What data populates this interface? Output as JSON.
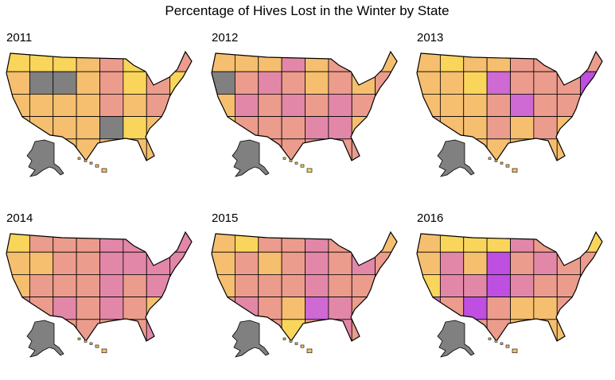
{
  "title": "Percentage of Hives Lost in the Winter by State",
  "panels": [
    {
      "year": "2011",
      "alaska": "#808080",
      "hawaii": "#f5bf6f",
      "cells": [
        [
          "#f9d55b",
          "#f9d55b",
          "#f9d55b",
          "#f5bf6f",
          "#ec9c8c",
          "#f9d55b",
          "#f5bf6f",
          "#ec9c8c"
        ],
        [
          "#f5bf6f",
          "#808080",
          "#808080",
          "#f5bf6f",
          "#ec9c8c",
          "#f9d55b",
          "#ec9c8c",
          "#f9d55b"
        ],
        [
          "#f5bf6f",
          "#f5bf6f",
          "#f5bf6f",
          "#f5bf6f",
          "#ec9c8c",
          "#f5bf6f",
          "#ec9c8c",
          "#f5bf6f"
        ],
        [
          "#f5bf6f",
          "#f5bf6f",
          "#f5bf6f",
          "#f5bf6f",
          "#808080",
          "#f9d55b",
          "#f5bf6f",
          "#f5bf6f"
        ],
        [
          "#f5bf6f",
          "#f5bf6f",
          "#f5bf6f",
          "#f5bf6f",
          "#f5bf6f",
          "#f5bf6f",
          "#f5bf6f",
          "#f5bf6f"
        ]
      ]
    },
    {
      "year": "2012",
      "alaska": "#808080",
      "hawaii": "#f9d55b",
      "cells": [
        [
          "#f5bf6f",
          "#f5bf6f",
          "#f5bf6f",
          "#e387a8",
          "#f5bf6f",
          "#ec9c8c",
          "#ec9c8c",
          "#f5bf6f"
        ],
        [
          "#808080",
          "#ec9c8c",
          "#e387a8",
          "#ec9c8c",
          "#f5bf6f",
          "#ec9c8c",
          "#f5bf6f",
          "#ec9c8c"
        ],
        [
          "#f5bf6f",
          "#e387a8",
          "#ec9c8c",
          "#e387a8",
          "#ec9c8c",
          "#e387a8",
          "#ec9c8c",
          "#f5bf6f"
        ],
        [
          "#f9d55b",
          "#ec9c8c",
          "#ec9c8c",
          "#ec9c8c",
          "#e387a8",
          "#e387a8",
          "#f5bf6f",
          "#ec9c8c"
        ],
        [
          "#f5bf6f",
          "#f5bf6f",
          "#ec9c8c",
          "#ec9c8c",
          "#ec9c8c",
          "#ec9c8c",
          "#ec9c8c",
          "#ec9c8c"
        ]
      ]
    },
    {
      "year": "2013",
      "alaska": "#808080",
      "hawaii": "#f5bf6f",
      "cells": [
        [
          "#f5bf6f",
          "#f9d55b",
          "#f5bf6f",
          "#f5bf6f",
          "#ec9c8c",
          "#ec9c8c",
          "#ec9c8c",
          "#ec9c8c"
        ],
        [
          "#f5bf6f",
          "#f5bf6f",
          "#f9d55b",
          "#cf69d3",
          "#ec9c8c",
          "#ec9c8c",
          "#ec9c8c",
          "#bf4fe0"
        ],
        [
          "#f5bf6f",
          "#f5bf6f",
          "#f5bf6f",
          "#ec9c8c",
          "#cf69d3",
          "#ec9c8c",
          "#ec9c8c",
          "#ec9c8c"
        ],
        [
          "#ec9c8c",
          "#f5bf6f",
          "#f5bf6f",
          "#ec9c8c",
          "#f5bf6f",
          "#ec9c8c",
          "#f5bf6f",
          "#f5bf6f"
        ],
        [
          "#f5bf6f",
          "#f5bf6f",
          "#f5bf6f",
          "#f5bf6f",
          "#f5bf6f",
          "#f5bf6f",
          "#f5bf6f",
          "#f5bf6f"
        ]
      ]
    },
    {
      "year": "2014",
      "alaska": "#808080",
      "hawaii": "#f5bf6f",
      "cells": [
        [
          "#f9d55b",
          "#ec9c8c",
          "#ec9c8c",
          "#ec9c8c",
          "#e387a8",
          "#e387a8",
          "#ec9c8c",
          "#e387a8"
        ],
        [
          "#f5bf6f",
          "#f5bf6f",
          "#ec9c8c",
          "#ec9c8c",
          "#e387a8",
          "#e387a8",
          "#e387a8",
          "#e387a8"
        ],
        [
          "#f5bf6f",
          "#ec9c8c",
          "#ec9c8c",
          "#ec9c8c",
          "#e387a8",
          "#ec9c8c",
          "#e387a8",
          "#ec9c8c"
        ],
        [
          "#e387a8",
          "#ec9c8c",
          "#e387a8",
          "#ec9c8c",
          "#e387a8",
          "#ec9c8c",
          "#f5bf6f",
          "#ec9c8c"
        ],
        [
          "#f5bf6f",
          "#ec9c8c",
          "#ec9c8c",
          "#ec9c8c",
          "#ec9c8c",
          "#ec9c8c",
          "#e387a8",
          "#ec9c8c"
        ]
      ]
    },
    {
      "year": "2015",
      "alaska": "#808080",
      "hawaii": "#f5bf6f",
      "cells": [
        [
          "#f5bf6f",
          "#f9d55b",
          "#ec9c8c",
          "#ec9c8c",
          "#e387a8",
          "#ec9c8c",
          "#ec9c8c",
          "#f5bf6f"
        ],
        [
          "#f5bf6f",
          "#ec9c8c",
          "#f5bf6f",
          "#ec9c8c",
          "#e387a8",
          "#ec9c8c",
          "#e387a8",
          "#ec9c8c"
        ],
        [
          "#f5bf6f",
          "#ec9c8c",
          "#ec9c8c",
          "#ec9c8c",
          "#e387a8",
          "#ec9c8c",
          "#ec9c8c",
          "#ec9c8c"
        ],
        [
          "#ec9c8c",
          "#e387a8",
          "#ec9c8c",
          "#f5bf6f",
          "#cf69d3",
          "#e387a8",
          "#ec9c8c",
          "#ec9c8c"
        ],
        [
          "#ec9c8c",
          "#ec9c8c",
          "#ec9c8c",
          "#f9d55b",
          "#ec9c8c",
          "#e387a8",
          "#ec9c8c",
          "#ec9c8c"
        ]
      ]
    },
    {
      "year": "2016",
      "alaska": "#808080",
      "hawaii": "#f5bf6f",
      "cells": [
        [
          "#f5bf6f",
          "#f9d55b",
          "#f9d55b",
          "#f9d55b",
          "#e387a8",
          "#ec9c8c",
          "#ec9c8c",
          "#f9d55b"
        ],
        [
          "#f5bf6f",
          "#e387a8",
          "#f5bf6f",
          "#bf4fe0",
          "#ec9c8c",
          "#e387a8",
          "#ec9c8c",
          "#ec9c8c"
        ],
        [
          "#f9d55b",
          "#e387a8",
          "#e387a8",
          "#bf4fe0",
          "#e387a8",
          "#ec9c8c",
          "#ec9c8c",
          "#f5bf6f"
        ],
        [
          "#cf69d3",
          "#ec9c8c",
          "#bf4fe0",
          "#ec9c8c",
          "#f5bf6f",
          "#f5bf6f",
          "#ec9c8c",
          "#f5bf6f"
        ],
        [
          "#f5bf6f",
          "#f5bf6f",
          "#ec9c8c",
          "#ec9c8c",
          "#f5bf6f",
          "#f5bf6f",
          "#f5bf6f",
          "#f5bf6f"
        ]
      ]
    }
  ]
}
